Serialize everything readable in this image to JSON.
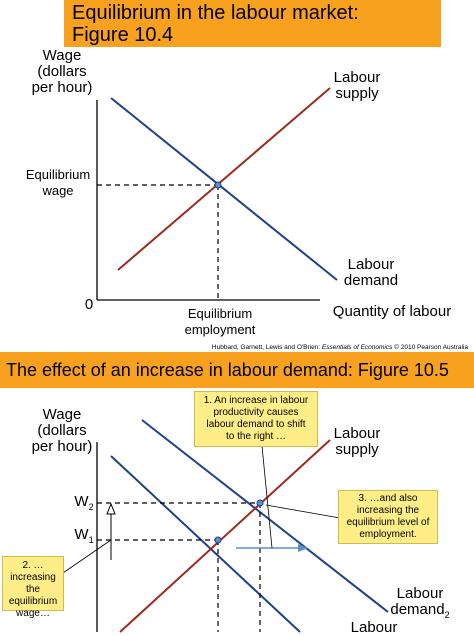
{
  "figure1": {
    "title_line1": "Equilibrium in the labour market:",
    "title_line2": "Figure 10.4",
    "y_axis_label_lines": [
      "Wage",
      "(dollars",
      "per hour)"
    ],
    "x_axis_label": "Quantity of labour",
    "origin_label": "0",
    "supply_label_lines": [
      "Labour",
      "supply"
    ],
    "demand_label_lines": [
      "Labour",
      "demand"
    ],
    "equilibrium_wage_lines": [
      "Equilibrium",
      "wage"
    ],
    "equilibrium_employment_lines": [
      "Equilibrium",
      "employment"
    ],
    "credit_prefix": "Hubbard, Garnett, Lewis and O'Brien: ",
    "credit_title": "Essentials of Economics",
    "credit_suffix": " © 2010 Pearson Australia"
  },
  "figure2": {
    "title": "The effect of an increase in labour demand: Figure 10.5",
    "y_axis_label_lines": [
      "Wage",
      "(dollars",
      "per hour)"
    ],
    "supply_label_lines": [
      "Labour",
      "supply"
    ],
    "demand2_label_line1": "Labour",
    "demand2_label_base": "demand",
    "demand2_label_sub": "2",
    "demand1_label_partial": "Labour",
    "w2_base": "W",
    "w2_sub": "2",
    "w1_base": "W",
    "w1_sub": "1",
    "note1_lines": [
      "1. An increase in labour",
      "productivity causes",
      "labour demand to shift",
      "to the right …"
    ],
    "note2_lines": [
      "2. …increasing",
      "the equilibrium",
      "wage…"
    ],
    "note3_lines": [
      "3. …and also",
      "increasing the",
      "equilibrium level of",
      "employment."
    ]
  },
  "colors": {
    "title_bg": "#F7A11E",
    "supply_line": "#A0291E",
    "demand_line": "#1F3F8F",
    "note_bg": "#FFEE88",
    "shift_arrow": "#5A8FC8"
  }
}
